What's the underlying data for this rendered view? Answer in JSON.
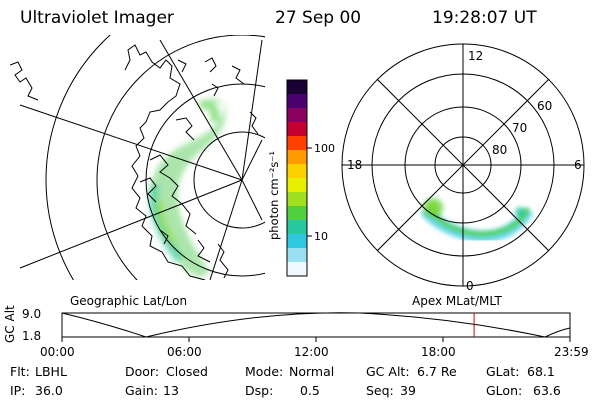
{
  "header": {
    "instrument": "Ultraviolet Imager",
    "date": "27 Sep 00",
    "time": "19:28:07 UT"
  },
  "colorbar": {
    "ticks": [
      "100",
      "10"
    ],
    "unit_label": "photon cm⁻²s⁻¹",
    "colors": [
      "#1a0033",
      "#4b0070",
      "#8a0060",
      "#c40030",
      "#ff4000",
      "#ff9a00",
      "#ffd000",
      "#e6f000",
      "#a0e020",
      "#50d040",
      "#28c8a0",
      "#30c8e0",
      "#9ae0f0",
      "#f0f8ff"
    ]
  },
  "polar_plot": {
    "mlt_labels": [
      "12",
      "18",
      "6",
      "0"
    ],
    "lat_labels": [
      "60",
      "70",
      "80"
    ]
  },
  "panel_labels": {
    "left": "Geographic Lat/Lon",
    "right": "Apex  MLat/MLT"
  },
  "altitude_plot": {
    "axis_label": "GC Alt",
    "y_ticks": [
      "9.0",
      "1.8"
    ],
    "x_ticks": [
      "00:00",
      "06:00",
      "12:00",
      "18:00",
      "23:59"
    ],
    "marker_color": "#cc0000",
    "marker_hours": 19.47
  },
  "info": {
    "flt_label": "Flt:",
    "flt_value": "LBHL",
    "door_label": "Door:",
    "door_value": "Closed",
    "mode_label": "Mode:",
    "mode_value": "Normal",
    "gcalt_label": "GC Alt:",
    "gcalt_value": "6.7 Re",
    "glat_label": "GLat:",
    "glat_value": "68.1",
    "ip_label": "IP:",
    "ip_value": "36.0",
    "gain_label": "Gain:",
    "gain_value": "13",
    "dsp_label": "Dsp:",
    "dsp_value": "0.5",
    "seq_label": "Seq:",
    "seq_value": "39",
    "glon_label": "GLon:",
    "glon_value": "63.6"
  }
}
